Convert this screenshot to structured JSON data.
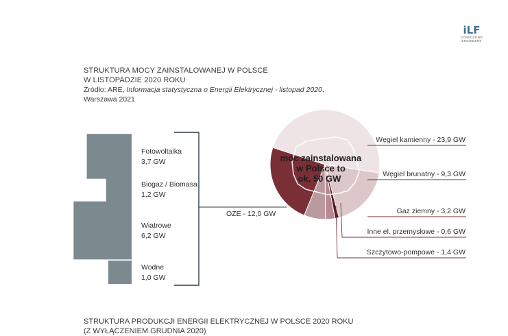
{
  "logo": {
    "mark": "iLF",
    "sub1": "CONSULTING",
    "sub2": "ENGINEERS"
  },
  "header": {
    "line1": "STRUKTURA MOCY ZAINSTALOWANEJ W POLSCE",
    "line2": "W LISTOPADZIE 2020 ROKU",
    "source_prefix": "Źródło: ARE, ",
    "source_title": "Informacja statystyczna o Energii Elektrycznej - listopad 2020",
    "source_suffix": ",",
    "source_line2": "Warszawa 2021"
  },
  "footer": {
    "line1": "STRUKTURA PRODUKCJI ENERGII ELEKTRYCZNEJ W POLSCE 2020 ROKU",
    "line2": "(Z WYŁĄCZENIEM GRUDNIA 2020)"
  },
  "colors": {
    "oze": "#7a2e36",
    "squares": "#7a8a8f",
    "bracket": "#2e3a48",
    "pie_light": [
      "#efe4e5",
      "#dcc7c9",
      "#c9aeb1",
      "#b99a9e",
      "#5a1a22",
      "#b88990"
    ]
  },
  "chart_data": {
    "type": "pie",
    "center_label": [
      "moc zainstalowana",
      "w Polsce to",
      "ok. 50 GW"
    ],
    "unit": "GW",
    "slices": [
      {
        "name": "Węgiel kamienny",
        "value": 23.9,
        "label": "Węgiel kamienny - 23,9 GW"
      },
      {
        "name": "Węgiel brunatny",
        "value": 9.3,
        "label": "Węgiel brunatny - 9,3 GW"
      },
      {
        "name": "Gaz ziemny",
        "value": 3.2,
        "label": "Gaz ziemny - 3,2 GW"
      },
      {
        "name": "Szczytowo-pompowe",
        "value": 1.4,
        "label": "Szczytowo-pompowe - 1,4 GW"
      },
      {
        "name": "Inne el. przemysłowe",
        "value": 0.6,
        "label": "Inne el. przemysłowe - 0,6 GW"
      },
      {
        "name": "OZE",
        "value": 12.0,
        "label": "OZE - 12,0 GW"
      }
    ],
    "oze_breakdown": [
      {
        "name": "Fotowoltaika",
        "value": 3.7,
        "value_label": "3,7 GW"
      },
      {
        "name": "Biogaz / Biomasa",
        "value": 1.2,
        "value_label": "1,2 GW"
      },
      {
        "name": "Wiatrowe",
        "value": 6.2,
        "value_label": "6,2 GW"
      },
      {
        "name": "Wodne",
        "value": 1.0,
        "value_label": "1,0 GW"
      }
    ]
  }
}
